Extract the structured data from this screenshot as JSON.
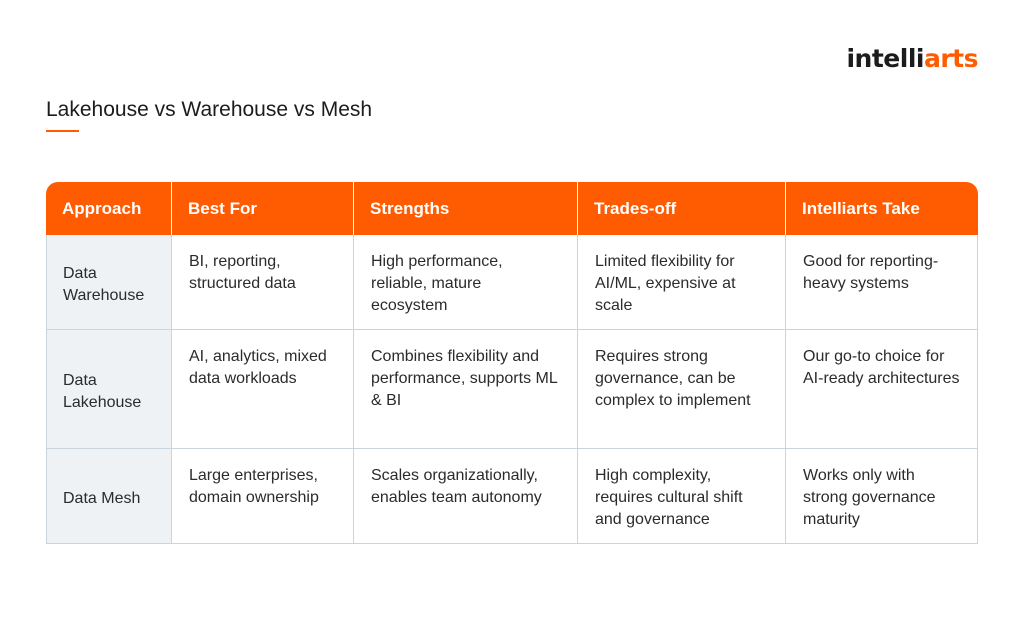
{
  "brand": {
    "logo_left": "intelli",
    "logo_right": "arts",
    "accent_color": "#ff5b00"
  },
  "title": "Lakehouse vs Warehouse vs Mesh",
  "table": {
    "headers": [
      "Approach",
      "Best For",
      "Strengths",
      "Trades-off",
      "Intelliarts Take"
    ],
    "rows": [
      [
        "Data Warehouse",
        "BI, reporting, structured data",
        "High performance, reliable, mature ecosystem",
        "Limited flexibility for AI/ML, expensive at scale",
        "Good for reporting-heavy systems"
      ],
      [
        "Data Lakehouse",
        "AI, analytics, mixed data workloads",
        "Combines flexibility and performance, supports ML & BI",
        "Requires strong governance, can be complex to implement",
        "Our go-to choice for AI-ready architectures"
      ],
      [
        "Data Mesh",
        "Large enterprises, domain ownership",
        "Scales organizationally, enables team autonomy",
        "High complexity, requires cultural shift and governance",
        "Works only with strong governance maturity"
      ]
    ]
  }
}
